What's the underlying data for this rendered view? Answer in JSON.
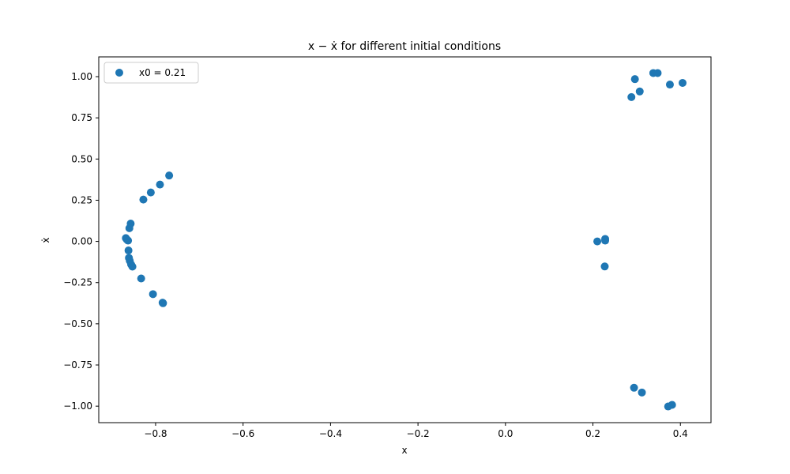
{
  "chart_data": {
    "type": "scatter",
    "title": "x − ẋ for different initial conditions",
    "xlabel": "x",
    "ylabel": "ẋ",
    "xlim": [
      -0.93,
      0.47
    ],
    "ylim": [
      -1.1,
      1.12
    ],
    "xticks": [
      -0.8,
      -0.6,
      -0.4,
      -0.2,
      0.0,
      0.2,
      0.4
    ],
    "xtick_labels": [
      "−0.8",
      "−0.6",
      "−0.4",
      "−0.2",
      "0.0",
      "0.2",
      "0.4"
    ],
    "yticks": [
      -1.0,
      -0.75,
      -0.5,
      -0.25,
      0.0,
      0.25,
      0.5,
      0.75,
      1.0
    ],
    "ytick_labels": [
      "−1.00",
      "−0.75",
      "−0.50",
      "−0.25",
      "0.00",
      "0.25",
      "0.50",
      "0.75",
      "1.00"
    ],
    "grid": false,
    "legend_position": "top-left",
    "series": [
      {
        "name": "x0 = 0.21",
        "color": "#1f77b4",
        "points": [
          [
            0.21,
            0.0
          ],
          [
            0.228,
            0.015
          ],
          [
            0.228,
            0.005
          ],
          [
            0.227,
            -0.152
          ],
          [
            0.288,
            0.876
          ],
          [
            0.296,
            0.985
          ],
          [
            0.307,
            0.91
          ],
          [
            0.338,
            1.022
          ],
          [
            0.348,
            1.022
          ],
          [
            0.376,
            0.952
          ],
          [
            0.405,
            0.962
          ],
          [
            0.294,
            -0.888
          ],
          [
            0.312,
            -0.917
          ],
          [
            0.372,
            -1.002
          ],
          [
            0.381,
            -0.992
          ],
          [
            -0.769,
            0.4
          ],
          [
            -0.79,
            0.345
          ],
          [
            -0.811,
            0.297
          ],
          [
            -0.828,
            0.254
          ],
          [
            -0.857,
            0.108
          ],
          [
            -0.86,
            0.08
          ],
          [
            -0.868,
            0.02
          ],
          [
            -0.866,
            0.012
          ],
          [
            -0.863,
            0.005
          ],
          [
            -0.862,
            -0.055
          ],
          [
            -0.861,
            -0.1
          ],
          [
            -0.859,
            -0.118
          ],
          [
            -0.856,
            -0.14
          ],
          [
            -0.853,
            -0.153
          ],
          [
            -0.833,
            -0.225
          ],
          [
            -0.806,
            -0.32
          ],
          [
            -0.783,
            -0.375
          ],
          [
            -0.784,
            -0.372
          ]
        ]
      }
    ]
  }
}
